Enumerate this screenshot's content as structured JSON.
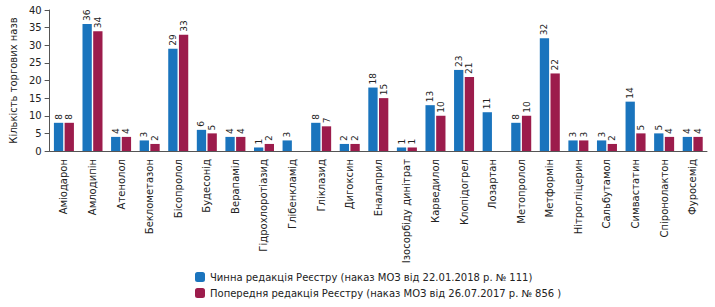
{
  "chart_data": {
    "type": "bar",
    "y_label": "Кількість торгових назв",
    "categories": [
      "Аміодарон",
      "Амлодипін",
      "Атенолол",
      "Беклометазон",
      "Бісопролол",
      "Будесонід",
      "Верапаміл",
      "Гідрохлоротіазид",
      "Глібенкламід",
      "Гліклазид",
      "Дигоксин",
      "Еналаприл",
      "Ізосорбіду динітрат",
      "Карведилол",
      "Клопідогрел",
      "Лозартан",
      "Метопролол",
      "Метформін",
      "Нітрогліцерин",
      "Сальбутамол",
      "Симвастатин",
      "Спіронолактон",
      "Фуросемід"
    ],
    "series": [
      {
        "name": "Чинна редакція Реєстру (наказ МОЗ від 22.01.2018 р. № 111)",
        "color": "#1a74bd",
        "values": [
          8,
          36,
          4,
          3,
          29,
          6,
          4,
          1,
          3,
          8,
          2,
          18,
          1,
          13,
          23,
          11,
          8,
          32,
          3,
          3,
          14,
          5,
          4
        ]
      },
      {
        "name": "Попередня редакція Реєстру (наказ МОЗ від 26.07.2017 р. № 856 )",
        "color": "#9c1c4c",
        "values": [
          8,
          34,
          4,
          2,
          33,
          5,
          4,
          2,
          null,
          7,
          2,
          15,
          1,
          10,
          21,
          null,
          10,
          22,
          3,
          2,
          5,
          4,
          4
        ]
      }
    ],
    "ylim": [
      0,
      40
    ],
    "yticks": [
      0,
      5,
      10,
      15,
      20,
      25,
      30,
      35,
      40
    ],
    "grid": false,
    "legend": "bottom",
    "data_labels": true
  }
}
